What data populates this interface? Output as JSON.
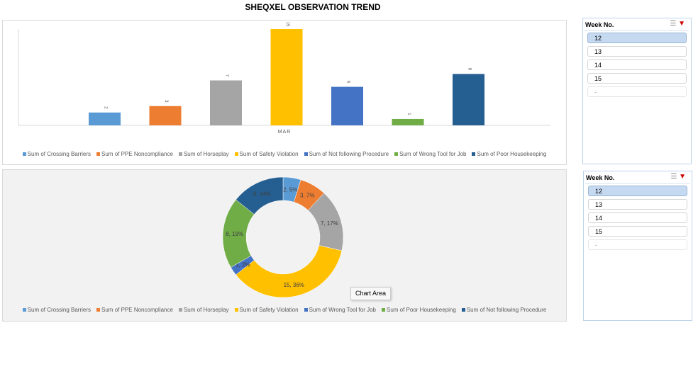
{
  "title": "SHEQXEL OBSERVATION TREND",
  "chart_data": [
    {
      "type": "bar",
      "categories": [
        "MAR"
      ],
      "ylim": [
        0,
        16
      ],
      "grid": false,
      "legend": "bottom",
      "series": [
        {
          "name": "Sum of Crossing Barriers",
          "values": [
            2
          ],
          "color": "#5b9bd5"
        },
        {
          "name": "Sum of PPE Noncompliance",
          "values": [
            3
          ],
          "color": "#ed7d31"
        },
        {
          "name": "Sum of Horseplay",
          "values": [
            7
          ],
          "color": "#a5a5a5"
        },
        {
          "name": "Sum of Safety Violation",
          "values": [
            15
          ],
          "color": "#ffc000"
        },
        {
          "name": "Sum of Not following Procedure",
          "values": [
            6
          ],
          "color": "#4472c4"
        },
        {
          "name": "Sum of Wrong Tool for Job",
          "values": [
            1
          ],
          "color": "#70ad47"
        },
        {
          "name": "Sum of Poor Housekeeping",
          "values": [
            8
          ],
          "color": "#255e91"
        }
      ]
    },
    {
      "type": "pie",
      "donut": true,
      "legend": "bottom",
      "slices": [
        {
          "name": "Sum of Crossing Barriers",
          "value": 2,
          "label": "2, 5%",
          "color": "#5b9bd5"
        },
        {
          "name": "Sum of PPE Noncompliance",
          "value": 3,
          "label": "3, 7%",
          "color": "#ed7d31"
        },
        {
          "name": "Sum of Horseplay",
          "value": 7,
          "label": "7, 17%",
          "color": "#a5a5a5"
        },
        {
          "name": "Sum of Safety Violation",
          "value": 15,
          "label": "15, 36%",
          "color": "#ffc000"
        },
        {
          "name": "Sum of Wrong Tool for Job",
          "value": 1,
          "label": "1, 2%",
          "color": "#4472c4"
        },
        {
          "name": "Sum of Poor Housekeeping",
          "value": 8,
          "label": "8, 19%",
          "color": "#70ad47"
        },
        {
          "name": "Sum of Not following Procedure",
          "value": 6,
          "label": "6, 14%",
          "color": "#255e91"
        }
      ]
    }
  ],
  "slicers": [
    {
      "header": "Week No.",
      "items": [
        "12",
        "13",
        "14",
        "15",
        "-"
      ],
      "selected": "12"
    },
    {
      "header": "Week No.",
      "items": [
        "12",
        "13",
        "14",
        "15",
        "-"
      ],
      "selected": "12"
    }
  ],
  "tooltip": "Chart Area"
}
